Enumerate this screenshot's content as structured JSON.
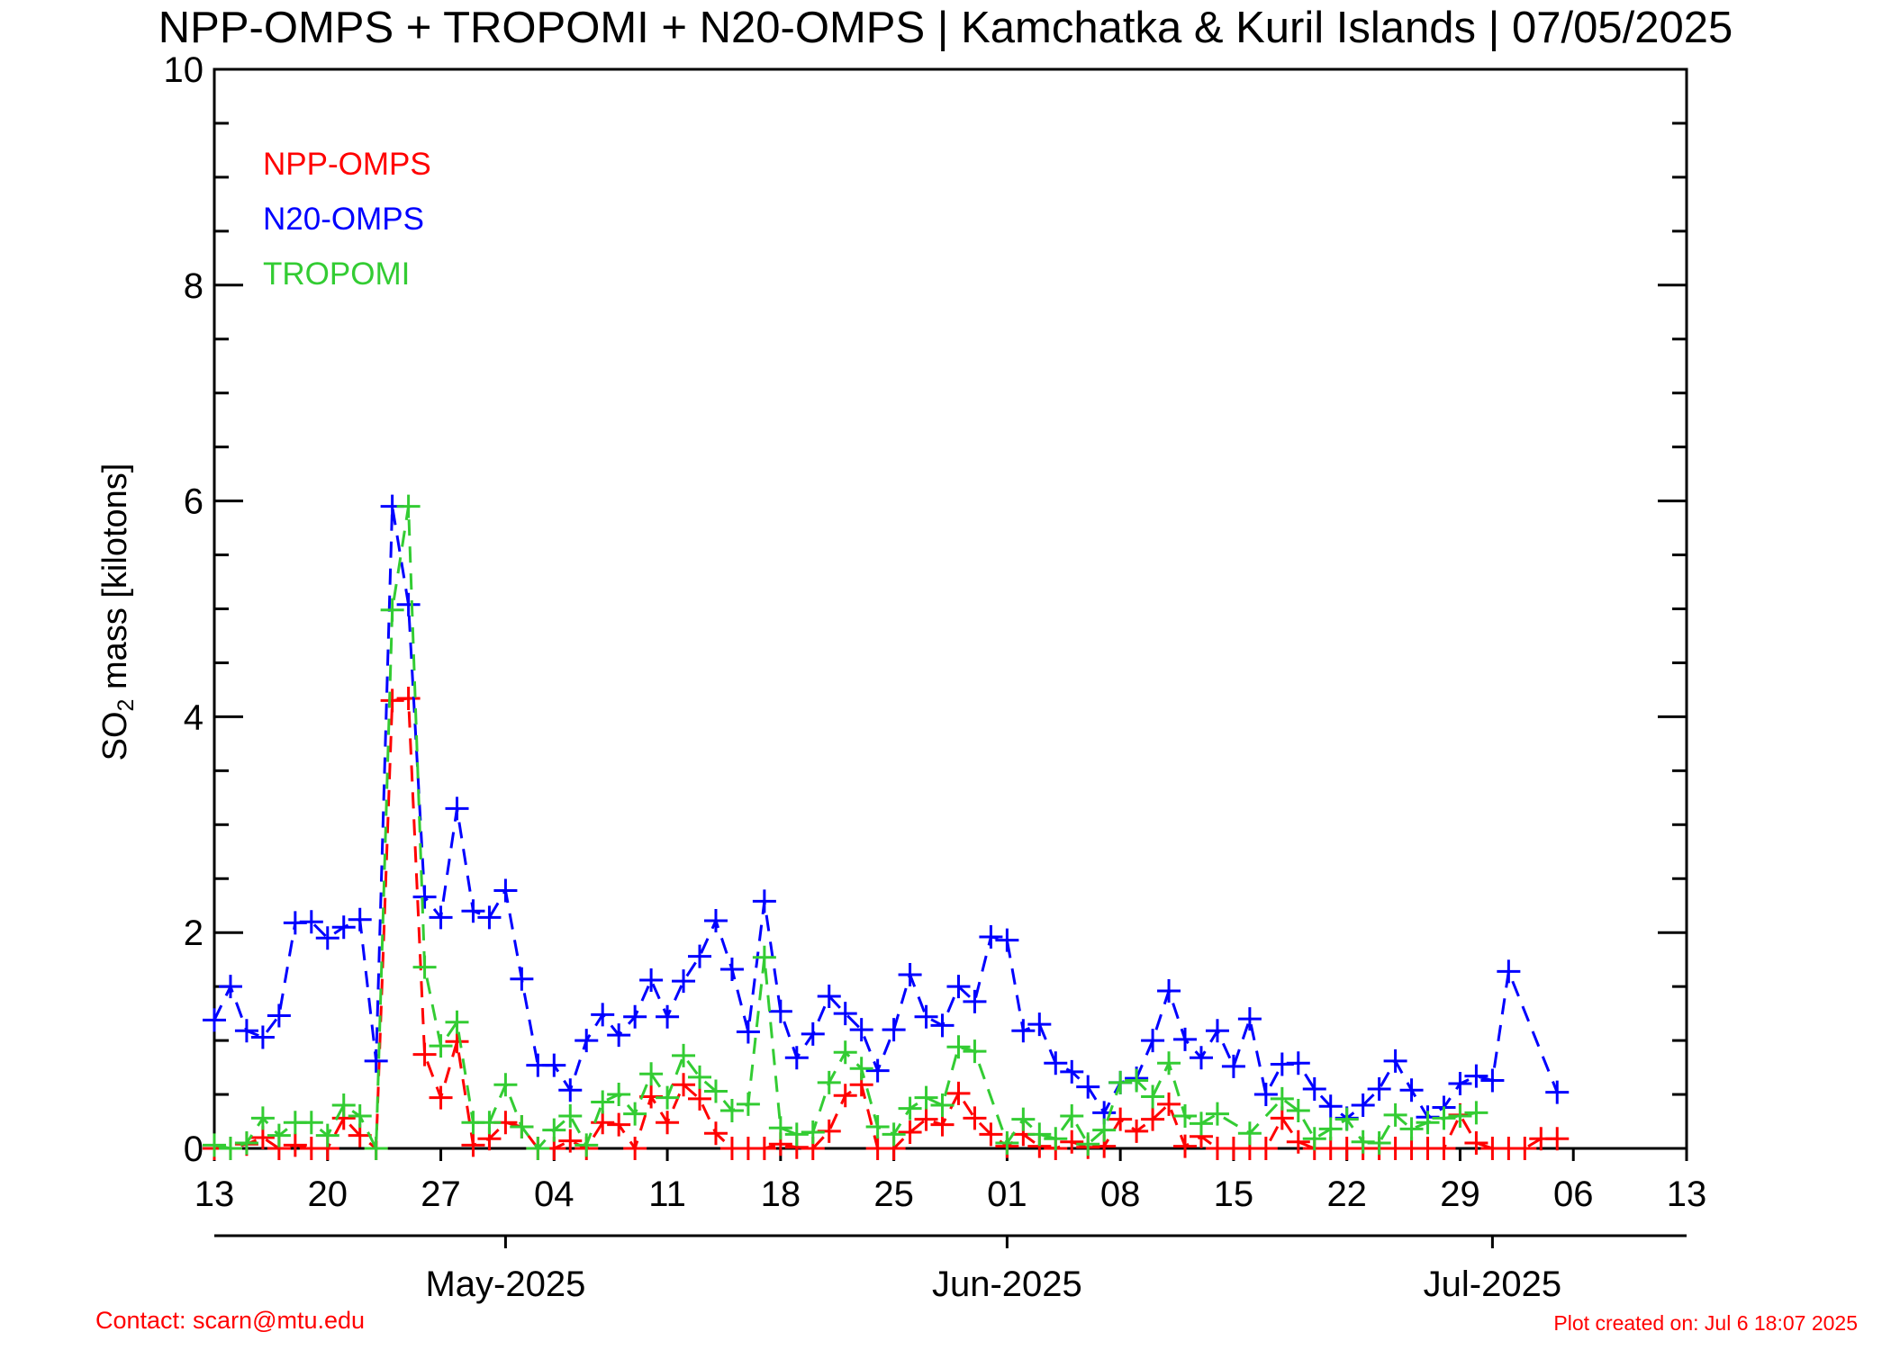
{
  "chart_data": {
    "type": "line",
    "title": "NPP-OMPS + TROPOMI + N20-OMPS | Kamchatka & Kuril Islands | 07/05/2025",
    "ylabel_main": "SO",
    "ylabel_sub": "2",
    "ylabel_rest": " mass [kilotons]",
    "ylim": [
      0,
      10
    ],
    "yticks": [
      "0",
      "2",
      "4",
      "6",
      "8",
      "10"
    ],
    "xlim": [
      "2025-04-13",
      "2025-07-13"
    ],
    "xtick_labels": [
      "13",
      "20",
      "27",
      "04",
      "11",
      "18",
      "25",
      "01",
      "08",
      "15",
      "22",
      "29",
      "06",
      "13"
    ],
    "month_labels": [
      "May-2025",
      "Jun-2025",
      "Jul-2025"
    ],
    "month_dates": [
      "2025-05-01",
      "2025-06-01",
      "2025-07-01"
    ],
    "legend_placement": "top-left",
    "grid": false,
    "marker": "plus",
    "linestyle": "dashed",
    "x": [
      "2025-04-13",
      "2025-04-14",
      "2025-04-15",
      "2025-04-16",
      "2025-04-17",
      "2025-04-18",
      "2025-04-19",
      "2025-04-20",
      "2025-04-21",
      "2025-04-22",
      "2025-04-23",
      "2025-04-24",
      "2025-04-25",
      "2025-04-26",
      "2025-04-27",
      "2025-04-28",
      "2025-04-29",
      "2025-04-30",
      "2025-05-01",
      "2025-05-02",
      "2025-05-03",
      "2025-05-04",
      "2025-05-05",
      "2025-05-06",
      "2025-05-07",
      "2025-05-08",
      "2025-05-09",
      "2025-05-10",
      "2025-05-11",
      "2025-05-12",
      "2025-05-13",
      "2025-05-14",
      "2025-05-15",
      "2025-05-16",
      "2025-05-17",
      "2025-05-18",
      "2025-05-19",
      "2025-05-20",
      "2025-05-21",
      "2025-05-22",
      "2025-05-23",
      "2025-05-24",
      "2025-05-25",
      "2025-05-26",
      "2025-05-27",
      "2025-05-28",
      "2025-05-29",
      "2025-05-30",
      "2025-05-31",
      "2025-06-01",
      "2025-06-02",
      "2025-06-03",
      "2025-06-04",
      "2025-06-05",
      "2025-06-06",
      "2025-06-07",
      "2025-06-08",
      "2025-06-09",
      "2025-06-10",
      "2025-06-11",
      "2025-06-12",
      "2025-06-13",
      "2025-06-14",
      "2025-06-15",
      "2025-06-16",
      "2025-06-17",
      "2025-06-18",
      "2025-06-19",
      "2025-06-20",
      "2025-06-21",
      "2025-06-22",
      "2025-06-23",
      "2025-06-24",
      "2025-06-25",
      "2025-06-26",
      "2025-06-27",
      "2025-06-28",
      "2025-06-29",
      "2025-06-30",
      "2025-07-01",
      "2025-07-02",
      "2025-07-03",
      "2025-07-04",
      "2025-07-05"
    ],
    "series": [
      {
        "name": "NPP-OMPS",
        "color": "#ff0000",
        "values": [
          0,
          0,
          0.04,
          0.1,
          0,
          0.03,
          0,
          0,
          0.28,
          0.12,
          0,
          4.15,
          4.17,
          0.87,
          0.47,
          0.99,
          0.03,
          0.09,
          0.24,
          0.2,
          0,
          0,
          0.07,
          0,
          0.24,
          0.22,
          0,
          0.48,
          0.24,
          0.59,
          0.46,
          0.14,
          0,
          0,
          0,
          0.04,
          0.01,
          0,
          0.16,
          0.49,
          0.59,
          0,
          0,
          0.15,
          0.27,
          0.22,
          0.51,
          0.28,
          0.13,
          0.02,
          0.13,
          0.02,
          0,
          0.06,
          0.01,
          0.02,
          0.27,
          0.16,
          0.27,
          0.41,
          0.02,
          0.11,
          0,
          0,
          0,
          0,
          0.28,
          0.06,
          0,
          0,
          0,
          0,
          0,
          0,
          0,
          0,
          0,
          0.31,
          0.05,
          0,
          0,
          0,
          0.09,
          0.09
        ]
      },
      {
        "name": "N20-OMPS",
        "color": "#0000ff",
        "values": [
          1.19,
          1.5,
          1.09,
          1.03,
          1.23,
          2.09,
          2.1,
          1.95,
          2.05,
          2.12,
          0.81,
          5.95,
          5.04,
          2.33,
          2.14,
          3.15,
          2.2,
          2.14,
          2.39,
          1.57,
          0.77,
          0.77,
          0.54,
          1.0,
          1.24,
          1.05,
          1.22,
          1.56,
          1.22,
          1.55,
          1.78,
          2.11,
          1.66,
          1.08,
          2.29,
          1.27,
          0.84,
          1.06,
          1.41,
          1.25,
          1.1,
          0.72,
          1.1,
          1.61,
          1.22,
          1.14,
          1.5,
          1.36,
          1.96,
          1.93,
          1.09,
          1.15,
          0.79,
          0.71,
          0.57,
          0.33,
          0.61,
          0.65,
          1.0,
          1.46,
          1.01,
          0.84,
          1.09,
          0.76,
          1.2,
          0.5,
          0.78,
          0.79,
          0.55,
          0.39,
          0.28,
          0.4,
          0.55,
          0.81,
          0.54,
          0.29,
          0.38,
          0.6,
          0.67,
          0.63,
          1.64,
          null,
          null,
          0.52
        ]
      },
      {
        "name": "TROPOMI",
        "color": "#33cc33",
        "values": [
          0.03,
          0,
          0.05,
          0.28,
          0.12,
          0.24,
          0.24,
          0.12,
          0.4,
          0.3,
          0,
          4.99,
          5.95,
          1.68,
          0.95,
          1.17,
          0.24,
          0.24,
          0.59,
          0.2,
          0,
          0.17,
          0.3,
          0.03,
          0.43,
          0.5,
          0.32,
          0.69,
          0.47,
          0.86,
          0.66,
          0.53,
          0.35,
          0.41,
          1.77,
          0.19,
          0.13,
          0.15,
          0.61,
          0.89,
          0.74,
          0.2,
          0.13,
          0.37,
          0.47,
          0.4,
          0.94,
          0.9,
          null,
          0.05,
          0.27,
          0.13,
          0.09,
          0.3,
          0.04,
          0.17,
          0.61,
          0.63,
          0.48,
          0.79,
          0.3,
          0.23,
          0.32,
          null,
          0.14,
          null,
          0.46,
          0.35,
          0.09,
          0.18,
          0.27,
          0.06,
          0.05,
          0.31,
          0.18,
          0.24,
          0.28,
          0.3,
          0.33,
          null,
          null,
          null,
          null,
          null
        ]
      }
    ]
  },
  "footer": {
    "contact": "Contact: scarn@mtu.edu",
    "created": "Plot created on: Jul  6 18:07 2025",
    "color": "#ff0000"
  }
}
